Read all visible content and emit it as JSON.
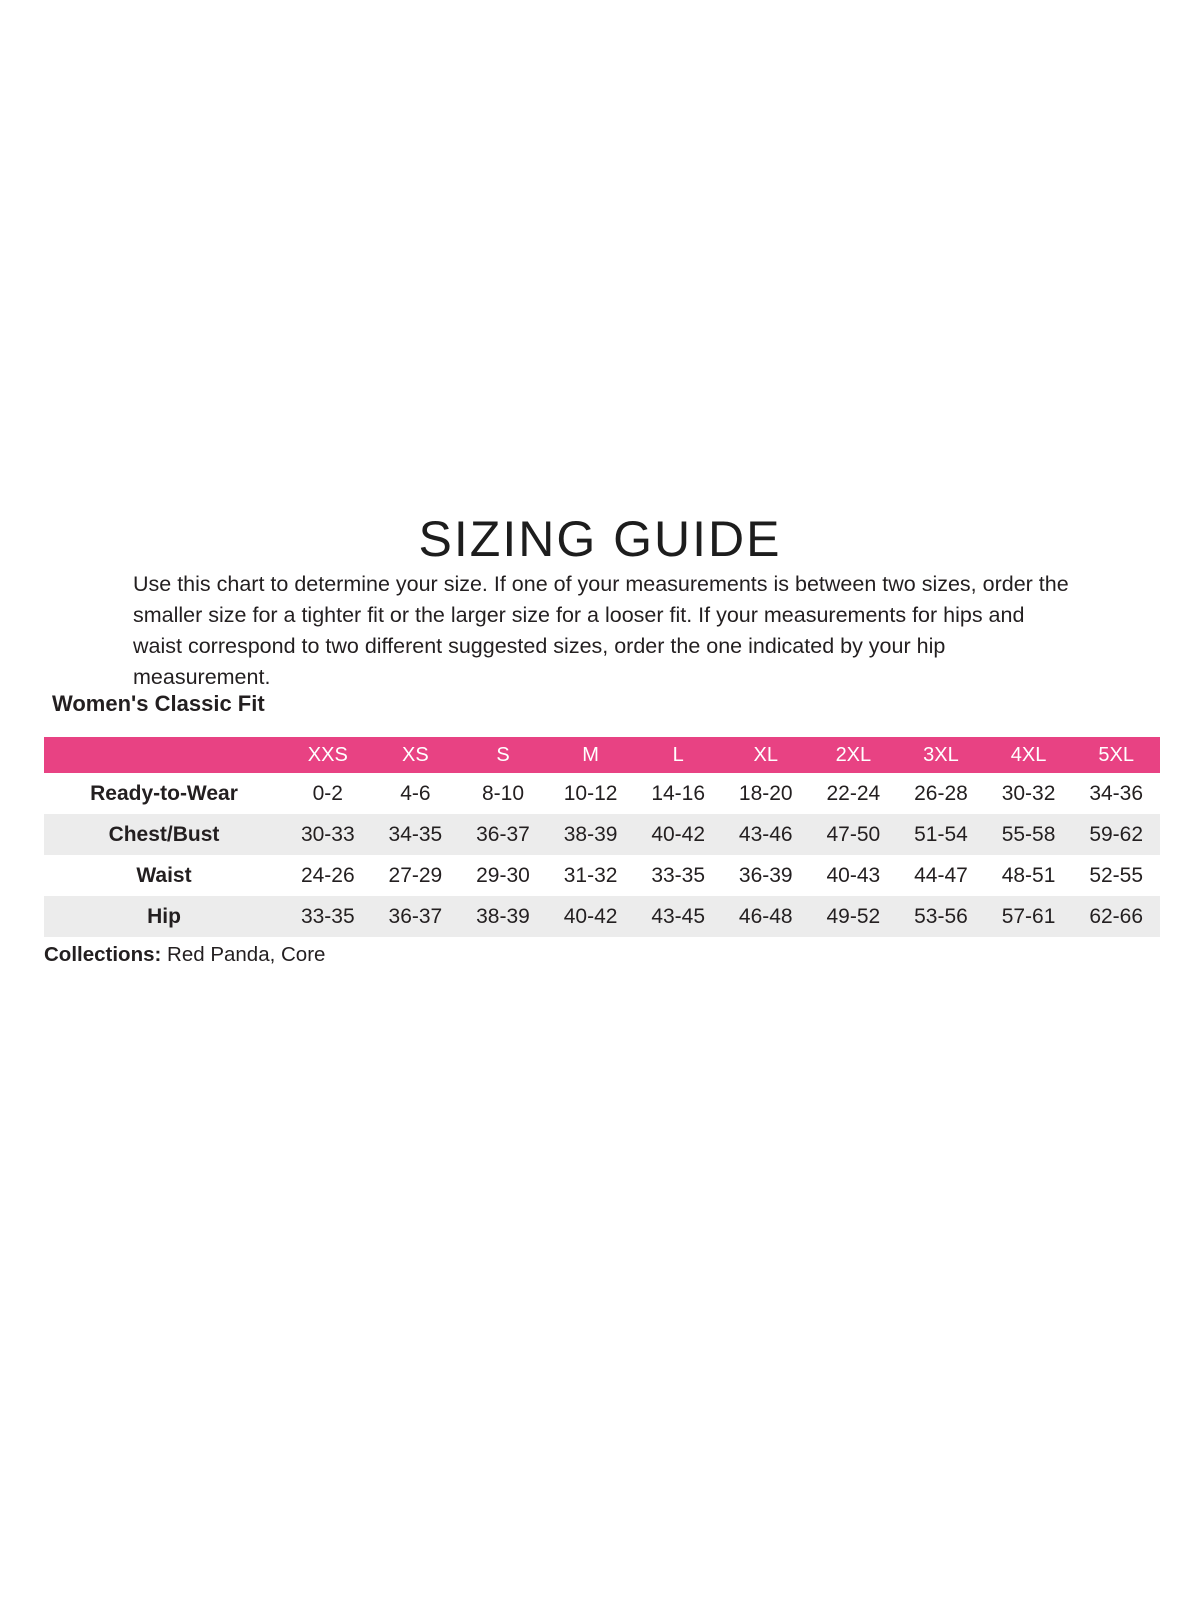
{
  "page": {
    "title": "SIZING GUIDE",
    "intro": "Use this chart to determine your size. If one of your measurements is between two sizes, order the smaller size for a tighter fit or the larger size for a looser fit. If your measurements for hips and waist correspond to two different suggested sizes, order the one indicated by your hip measurement.",
    "section_title": "Women's Classic Fit",
    "collections_label": "Collections:",
    "collections_value": " Red Panda, Core"
  },
  "colors": {
    "header_bg": "#e84283",
    "header_text": "#ffffff",
    "stripe_bg": "#ececec",
    "body_text": "#231f20"
  },
  "chart_data": {
    "type": "table",
    "title": "Women's Classic Fit",
    "size_headers": [
      "XXS",
      "XS",
      "S",
      "M",
      "L",
      "XL",
      "2XL",
      "3XL",
      "4XL",
      "5XL"
    ],
    "rows": [
      {
        "label": "Ready-to-Wear",
        "values": [
          "0-2",
          "4-6",
          "8-10",
          "10-12",
          "14-16",
          "18-20",
          "22-24",
          "26-28",
          "30-32",
          "34-36"
        ]
      },
      {
        "label": "Chest/Bust",
        "values": [
          "30-33",
          "34-35",
          "36-37",
          "38-39",
          "40-42",
          "43-46",
          "47-50",
          "51-54",
          "55-58",
          "59-62"
        ]
      },
      {
        "label": "Waist",
        "values": [
          "24-26",
          "27-29",
          "29-30",
          "31-32",
          "33-35",
          "36-39",
          "40-43",
          "44-47",
          "48-51",
          "52-55"
        ]
      },
      {
        "label": "Hip",
        "values": [
          "33-35",
          "36-37",
          "38-39",
          "40-42",
          "43-45",
          "46-48",
          "49-52",
          "53-56",
          "57-61",
          "62-66"
        ]
      }
    ]
  }
}
